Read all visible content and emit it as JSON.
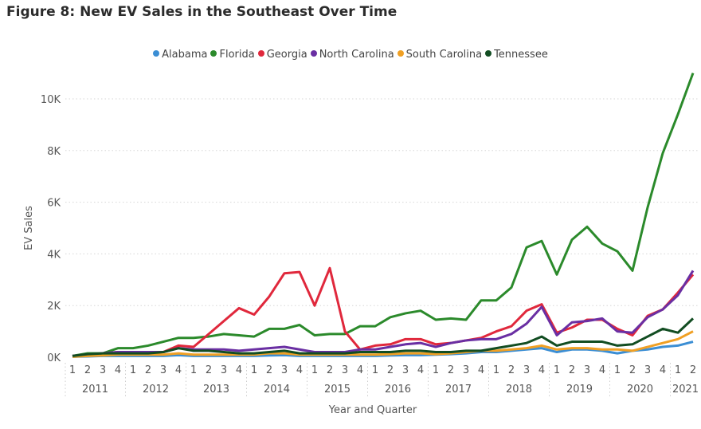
{
  "chart_data": {
    "type": "line",
    "title": "Figure 8: New EV Sales in the Southeast Over Time",
    "xlabel": "Year and Quarter",
    "ylabel": "EV Sales",
    "ylim": [
      0,
      11000
    ],
    "yticks": [
      0,
      2000,
      4000,
      6000,
      8000,
      10000
    ],
    "ytick_labels": [
      "0K",
      "2K",
      "4K",
      "6K",
      "8K",
      "10K"
    ],
    "grid": true,
    "legend": "top-center",
    "years": [
      "2011",
      "2012",
      "2013",
      "2014",
      "2015",
      "2016",
      "2017",
      "2018",
      "2019",
      "2020",
      "2021"
    ],
    "x": [
      "2011 Q1",
      "2011 Q2",
      "2011 Q3",
      "2011 Q4",
      "2012 Q1",
      "2012 Q2",
      "2012 Q3",
      "2012 Q4",
      "2013 Q1",
      "2013 Q2",
      "2013 Q3",
      "2013 Q4",
      "2014 Q1",
      "2014 Q2",
      "2014 Q3",
      "2014 Q4",
      "2015 Q1",
      "2015 Q2",
      "2015 Q3",
      "2015 Q4",
      "2016 Q1",
      "2016 Q2",
      "2016 Q3",
      "2016 Q4",
      "2017 Q1",
      "2017 Q2",
      "2017 Q3",
      "2017 Q4",
      "2018 Q1",
      "2018 Q2",
      "2018 Q3",
      "2018 Q4",
      "2019 Q1",
      "2019 Q2",
      "2019 Q3",
      "2019 Q4",
      "2020 Q1",
      "2020 Q2",
      "2020 Q3",
      "2020 Q4",
      "2021 Q1",
      "2021 Q2"
    ],
    "series": [
      {
        "name": "Alabama",
        "color": "#3b8ed4",
        "values": [
          20,
          30,
          50,
          50,
          50,
          50,
          50,
          80,
          50,
          50,
          50,
          50,
          50,
          70,
          80,
          50,
          50,
          50,
          50,
          50,
          50,
          70,
          80,
          80,
          100,
          120,
          150,
          200,
          200,
          250,
          300,
          350,
          200,
          300,
          300,
          250,
          150,
          250,
          300,
          400,
          450,
          600
        ]
      },
      {
        "name": "Florida",
        "color": "#2b8a2b",
        "values": [
          50,
          150,
          150,
          350,
          350,
          450,
          600,
          750,
          750,
          800,
          900,
          850,
          800,
          1100,
          1100,
          1250,
          850,
          900,
          900,
          1200,
          1200,
          1550,
          1700,
          1800,
          1450,
          1500,
          1450,
          2200,
          2200,
          2700,
          4250,
          4500,
          3200,
          4550,
          5050,
          4400,
          4100,
          3350,
          5800,
          7900,
          9400,
          11000
        ]
      },
      {
        "name": "Georgia",
        "color": "#e0283c",
        "values": [
          50,
          100,
          150,
          200,
          200,
          150,
          200,
          450,
          400,
          900,
          1400,
          1900,
          1650,
          2350,
          3250,
          3300,
          2000,
          3450,
          1000,
          300,
          450,
          500,
          700,
          700,
          500,
          550,
          650,
          750,
          1000,
          1200,
          1800,
          2050,
          950,
          1150,
          1450,
          1450,
          1100,
          850,
          1600,
          1850,
          2500,
          3200
        ]
      },
      {
        "name": "North Carolina",
        "color": "#6a2fa3",
        "values": [
          50,
          100,
          150,
          200,
          200,
          200,
          200,
          350,
          300,
          300,
          300,
          250,
          300,
          350,
          400,
          300,
          200,
          200,
          200,
          300,
          300,
          400,
          500,
          550,
          400,
          550,
          650,
          700,
          700,
          900,
          1300,
          1950,
          850,
          1350,
          1400,
          1500,
          1000,
          950,
          1550,
          1850,
          2400,
          3350
        ]
      },
      {
        "name": "South Carolina",
        "color": "#f0a024",
        "values": [
          20,
          50,
          70,
          100,
          100,
          100,
          100,
          150,
          100,
          100,
          100,
          100,
          100,
          150,
          150,
          100,
          100,
          100,
          100,
          100,
          100,
          120,
          150,
          150,
          120,
          150,
          200,
          250,
          250,
          300,
          350,
          450,
          300,
          350,
          350,
          300,
          300,
          250,
          400,
          550,
          700,
          1000
        ]
      },
      {
        "name": "Tennessee",
        "color": "#124d22",
        "values": [
          50,
          120,
          150,
          150,
          150,
          150,
          200,
          350,
          250,
          250,
          200,
          150,
          150,
          200,
          250,
          150,
          150,
          150,
          150,
          200,
          200,
          200,
          250,
          250,
          200,
          200,
          250,
          250,
          350,
          450,
          550,
          800,
          450,
          600,
          600,
          600,
          450,
          500,
          800,
          1100,
          950,
          1500
        ]
      }
    ]
  }
}
